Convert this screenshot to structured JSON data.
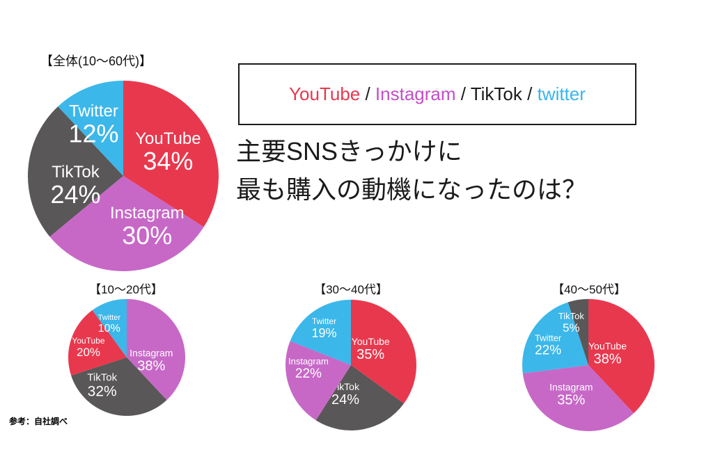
{
  "heading": {
    "line1": "主要SNSきっかけに",
    "line2": "最も購入の動機になったのは？"
  },
  "legend_box": {
    "separator": " / ",
    "separator_color": "#1a1a1a",
    "items": [
      {
        "label": "YouTube",
        "color": "#e8374d"
      },
      {
        "label": "Instagram",
        "color": "#c24fc8"
      },
      {
        "label": "TikTok",
        "color": "#1a1a1a"
      },
      {
        "label": "twitter",
        "color": "#38b5eb"
      }
    ]
  },
  "footnote": "参考：自社調べ",
  "chart_data": [
    {
      "type": "pie",
      "title": "【全体(10〜60代)】",
      "start_angle_deg": 0,
      "direction": "clockwise",
      "legend_position": "none",
      "slices": [
        {
          "label": "YouTube",
          "value": 34,
          "pct_label": "34%",
          "color": "#e8384e",
          "lx": 0.47,
          "ly": -0.39,
          "name_size": 24,
          "pct_size": 36
        },
        {
          "label": "Instagram",
          "value": 30,
          "pct_label": "30%",
          "color": "#c768c7",
          "lx": 0.25,
          "ly": 0.39,
          "name_size": 24,
          "pct_size": 36
        },
        {
          "label": "TikTok",
          "value": 24,
          "pct_label": "24%",
          "color": "#595757",
          "lx": -0.5,
          "ly": -0.04,
          "name_size": 24,
          "pct_size": 36
        },
        {
          "label": "Twitter",
          "value": 12,
          "pct_label": "12%",
          "color": "#3cb7e9",
          "lx": -0.31,
          "ly": -0.68,
          "name_size": 24,
          "pct_size": 36
        }
      ]
    },
    {
      "type": "pie",
      "title": "【10〜20代】",
      "start_angle_deg": 0,
      "direction": "clockwise",
      "legend_position": "none",
      "slices": [
        {
          "label": "Instagram",
          "value": 38,
          "pct_label": "38%",
          "color": "#c768c7",
          "lx": 0.42,
          "ly": -0.08,
          "name_size": 14,
          "pct_size": 20
        },
        {
          "label": "TikTok",
          "value": 32,
          "pct_label": "32%",
          "color": "#595757",
          "lx": -0.42,
          "ly": 0.345,
          "name_size": 15,
          "pct_size": 21
        },
        {
          "label": "YouTube",
          "value": 20,
          "pct_label": "20%",
          "color": "#e8384e",
          "lx": -0.655,
          "ly": -0.286,
          "name_size": 12,
          "pct_size": 17
        },
        {
          "label": "Twitter",
          "value": 10,
          "pct_label": "10%",
          "color": "#3cb7e9",
          "lx": -0.3,
          "ly": -0.68,
          "name_size": 11,
          "pct_size": 16
        }
      ]
    },
    {
      "type": "pie",
      "title": "【30〜40代】",
      "start_angle_deg": 0,
      "direction": "clockwise",
      "legend_position": "none",
      "slices": [
        {
          "label": "YouTube",
          "value": 35,
          "pct_label": "35%",
          "color": "#e8384e",
          "lx": 0.3,
          "ly": -0.36,
          "name_size": 14,
          "pct_size": 20
        },
        {
          "label": "TikTok",
          "value": 24,
          "pct_label": "24%",
          "color": "#595757",
          "lx": -0.085,
          "ly": 0.33,
          "name_size": 14,
          "pct_size": 20
        },
        {
          "label": "Instagram",
          "value": 22,
          "pct_label": "22%",
          "color": "#c768c7",
          "lx": -0.65,
          "ly": -0.06,
          "name_size": 13,
          "pct_size": 19
        },
        {
          "label": "Twitter",
          "value": 19,
          "pct_label": "19%",
          "color": "#3cb7e9",
          "lx": -0.41,
          "ly": -0.67,
          "name_size": 12,
          "pct_size": 18
        }
      ]
    },
    {
      "type": "pie",
      "title": "【40〜50代】",
      "start_angle_deg": 0,
      "direction": "clockwise",
      "legend_position": "none",
      "slices": [
        {
          "label": "YouTube",
          "value": 38,
          "pct_label": "38%",
          "color": "#e8384e",
          "lx": 0.29,
          "ly": -0.29,
          "name_size": 14,
          "pct_size": 20
        },
        {
          "label": "Instagram",
          "value": 35,
          "pct_label": "35%",
          "color": "#c768c7",
          "lx": -0.26,
          "ly": 0.33,
          "name_size": 14,
          "pct_size": 20
        },
        {
          "label": "Twitter",
          "value": 22,
          "pct_label": "22%",
          "color": "#3cb7e9",
          "lx": -0.61,
          "ly": -0.41,
          "name_size": 13,
          "pct_size": 19
        },
        {
          "label": "TikTok",
          "value": 5,
          "pct_label": "5%",
          "color": "#595757",
          "lx": -0.26,
          "ly": -0.74,
          "name_size": 13,
          "pct_size": 17
        }
      ]
    }
  ]
}
